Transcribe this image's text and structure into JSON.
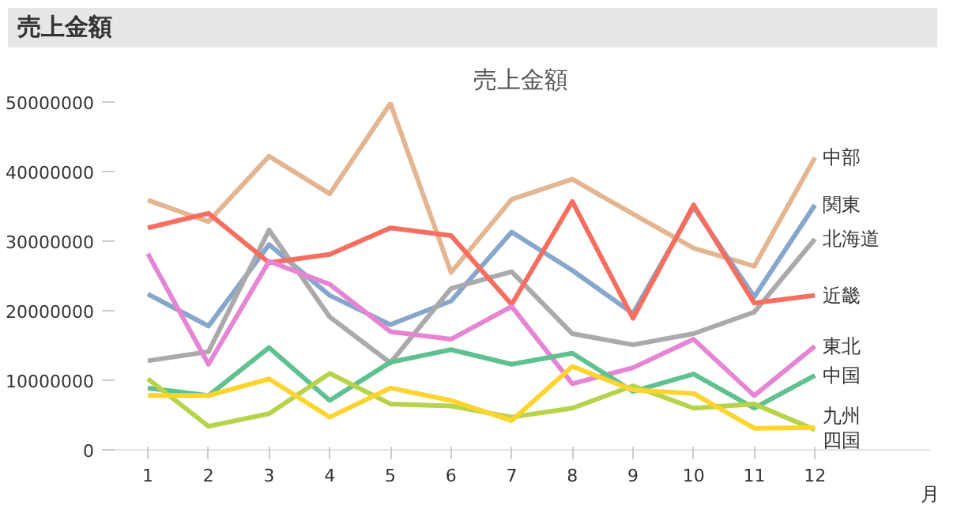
{
  "chart_data": {
    "type": "line",
    "title": "売上金額",
    "annotations": [
      "売上金額"
    ],
    "xlabel": "月",
    "x": [
      1,
      2,
      3,
      4,
      5,
      6,
      7,
      8,
      9,
      10,
      11,
      12
    ],
    "xlim": [
      0.4,
      13.9
    ],
    "xticks": [
      1,
      2,
      3,
      4,
      5,
      6,
      7,
      8,
      9,
      10,
      11,
      12
    ],
    "ylim": [
      0,
      50000000
    ],
    "yticks": [
      0,
      10000000,
      20000000,
      30000000,
      40000000,
      50000000
    ],
    "grid": false,
    "marker": "none",
    "line_style": "solid",
    "series": [
      {
        "name": "中部",
        "color": "#e3b591",
        "values": [
          35900000,
          32800000,
          42200000,
          36800000,
          49800000,
          25500000,
          36000000,
          38900000,
          33900000,
          29000000,
          26400000,
          42000000
        ]
      },
      {
        "name": "関東",
        "color": "#87a6cc",
        "values": [
          22400000,
          17800000,
          29500000,
          22200000,
          18000000,
          21400000,
          31300000,
          25800000,
          19600000,
          34900000,
          22000000,
          35200000
        ]
      },
      {
        "name": "北海道",
        "color": "#aaaaaa",
        "values": [
          12800000,
          14100000,
          31600000,
          19100000,
          12500000,
          23200000,
          25600000,
          16700000,
          15100000,
          16700000,
          19800000,
          30300000
        ]
      },
      {
        "name": "近畿",
        "color": "#f66e5f",
        "values": [
          31900000,
          34000000,
          26900000,
          28100000,
          31900000,
          30800000,
          20900000,
          35700000,
          18900000,
          35200000,
          21100000,
          22200000
        ]
      },
      {
        "name": "東北",
        "color": "#e585d4",
        "values": [
          28200000,
          12300000,
          27100000,
          23800000,
          17000000,
          15900000,
          20600000,
          9500000,
          11800000,
          15900000,
          7800000,
          14900000
        ]
      },
      {
        "name": "中国",
        "color": "#5fc190",
        "values": [
          8900000,
          7800000,
          14700000,
          7100000,
          12600000,
          14400000,
          12300000,
          13900000,
          8400000,
          10900000,
          6000000,
          10700000
        ]
      },
      {
        "name": "四国",
        "color": "#b6d44a",
        "values": [
          10200000,
          3400000,
          5200000,
          11000000,
          6600000,
          6300000,
          4700000,
          6000000,
          9200000,
          6000000,
          6600000,
          2900000
        ]
      },
      {
        "name": "九州",
        "color": "#fdd430",
        "values": [
          7800000,
          7800000,
          10200000,
          4700000,
          8900000,
          7100000,
          4200000,
          12000000,
          8600000,
          8100000,
          3100000,
          3200000
        ]
      }
    ]
  }
}
